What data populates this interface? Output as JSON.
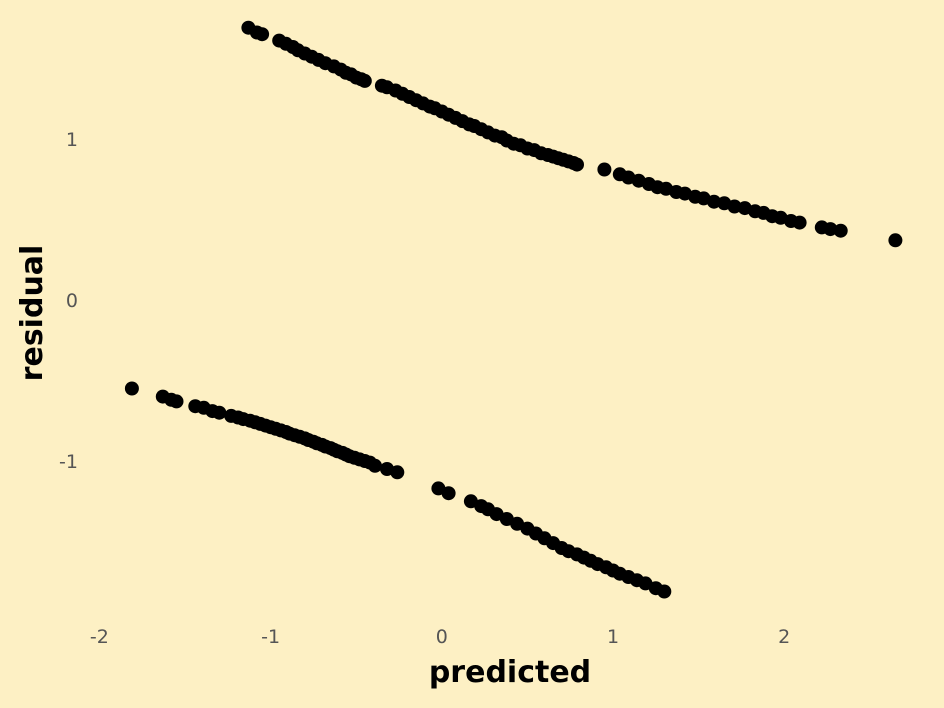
{
  "chart_data": {
    "type": "scatter",
    "title": "",
    "xlabel": "predicted",
    "ylabel": "residual",
    "xlim": [
      -2.02,
      2.7
    ],
    "ylim": [
      -1.95,
      1.8
    ],
    "xticks": [
      -2,
      -1,
      0,
      1,
      2
    ],
    "xtick_labels": [
      "-2",
      "-1",
      "0",
      "1",
      "2"
    ],
    "yticks": [
      -1,
      0,
      1
    ],
    "ytick_labels": [
      "-1",
      "0",
      "1"
    ],
    "grid": false,
    "legend": "none",
    "colors": {
      "background": "#FDF0C4",
      "points": "#000000",
      "tick_text": "#555555"
    },
    "x": [
      -1.13,
      -1.08,
      -1.05,
      -0.95,
      -0.91,
      -0.87,
      -0.84,
      -0.8,
      -0.76,
      -0.72,
      -0.68,
      -0.63,
      -0.59,
      -0.56,
      -0.53,
      -0.5,
      -0.47,
      -0.45,
      -0.35,
      -0.32,
      -0.27,
      -0.23,
      -0.19,
      -0.15,
      -0.11,
      -0.07,
      -0.04,
      0.0,
      0.04,
      0.08,
      0.12,
      0.16,
      0.19,
      0.23,
      0.27,
      0.31,
      0.35,
      0.38,
      0.42,
      0.46,
      0.5,
      0.54,
      0.58,
      0.62,
      0.65,
      0.68,
      0.71,
      0.74,
      0.77,
      0.79,
      0.95,
      1.04,
      1.09,
      1.15,
      1.21,
      1.26,
      1.31,
      1.37,
      1.42,
      1.48,
      1.53,
      1.59,
      1.65,
      1.71,
      1.77,
      1.83,
      1.88,
      1.93,
      1.98,
      2.04,
      2.09,
      2.22,
      2.27,
      2.33,
      2.65,
      -1.81,
      -1.63,
      -1.58,
      -1.55,
      -1.44,
      -1.39,
      -1.34,
      -1.3,
      -1.23,
      -1.19,
      -1.16,
      -1.12,
      -1.09,
      -1.06,
      -1.03,
      -1.0,
      -0.97,
      -0.94,
      -0.91,
      -0.89,
      -0.86,
      -0.83,
      -0.8,
      -0.78,
      -0.75,
      -0.73,
      -0.7,
      -0.68,
      -0.65,
      -0.63,
      -0.61,
      -0.58,
      -0.56,
      -0.54,
      -0.51,
      -0.48,
      -0.45,
      -0.42,
      -0.39,
      -0.32,
      -0.26,
      -0.02,
      0.04,
      0.17,
      0.23,
      0.27,
      0.32,
      0.38,
      0.44,
      0.5,
      0.55,
      0.6,
      0.65,
      0.7,
      0.74,
      0.79,
      0.83,
      0.87,
      0.91,
      0.96,
      1.0,
      1.04,
      1.09,
      1.14,
      1.19,
      1.25,
      1.3
    ],
    "y": [
      1.69,
      1.66,
      1.65,
      1.61,
      1.59,
      1.57,
      1.55,
      1.53,
      1.51,
      1.49,
      1.47,
      1.45,
      1.43,
      1.41,
      1.4,
      1.38,
      1.37,
      1.36,
      1.33,
      1.32,
      1.3,
      1.28,
      1.26,
      1.24,
      1.22,
      1.2,
      1.19,
      1.17,
      1.15,
      1.13,
      1.11,
      1.09,
      1.08,
      1.06,
      1.04,
      1.02,
      1.01,
      0.99,
      0.97,
      0.96,
      0.94,
      0.93,
      0.91,
      0.9,
      0.89,
      0.88,
      0.87,
      0.86,
      0.85,
      0.84,
      0.81,
      0.78,
      0.76,
      0.74,
      0.72,
      0.7,
      0.69,
      0.67,
      0.66,
      0.64,
      0.63,
      0.61,
      0.6,
      0.58,
      0.57,
      0.55,
      0.54,
      0.52,
      0.51,
      0.49,
      0.48,
      0.45,
      0.44,
      0.43,
      0.37,
      -0.55,
      -0.6,
      -0.62,
      -0.63,
      -0.66,
      -0.67,
      -0.69,
      -0.7,
      -0.72,
      -0.73,
      -0.74,
      -0.75,
      -0.76,
      -0.77,
      -0.78,
      -0.79,
      -0.8,
      -0.81,
      -0.82,
      -0.83,
      -0.84,
      -0.85,
      -0.86,
      -0.87,
      -0.88,
      -0.89,
      -0.9,
      -0.91,
      -0.92,
      -0.93,
      -0.94,
      -0.95,
      -0.96,
      -0.97,
      -0.98,
      -0.99,
      -1.0,
      -1.01,
      -1.03,
      -1.05,
      -1.07,
      -1.17,
      -1.2,
      -1.25,
      -1.28,
      -1.3,
      -1.33,
      -1.36,
      -1.39,
      -1.42,
      -1.45,
      -1.48,
      -1.51,
      -1.54,
      -1.56,
      -1.58,
      -1.6,
      -1.62,
      -1.64,
      -1.66,
      -1.68,
      -1.7,
      -1.72,
      -1.74,
      -1.76,
      -1.79,
      -1.81
    ]
  }
}
